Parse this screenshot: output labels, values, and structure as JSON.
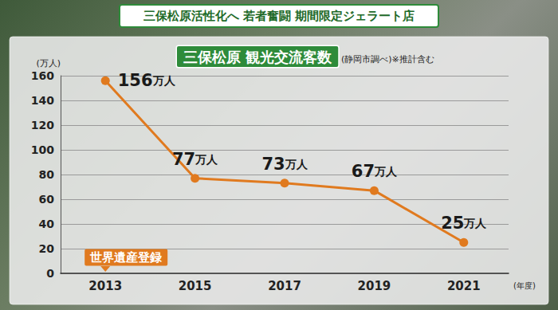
{
  "chart_data": {
    "type": "line",
    "header": "三保松原活性化へ 若者奮闘 期間限定ジェラート店",
    "title": "三保松原 観光交流客数",
    "subtitle": "(静岡市調べ)※推計含む",
    "x_label": "(年度)",
    "y_label": "(万人)",
    "categories": [
      "2013",
      "2015",
      "2017",
      "2019",
      "2021"
    ],
    "values": [
      156,
      77,
      73,
      67,
      25
    ],
    "value_labels": [
      "156万人",
      "77万人",
      "73万人",
      "67万人",
      "25万人"
    ],
    "color": "#e07a1f",
    "marker": "circle",
    "ylim": [
      0,
      160
    ],
    "yticks": [
      0,
      20,
      40,
      60,
      80,
      100,
      120,
      140,
      160
    ],
    "grid": true,
    "data_labels": true,
    "annotations": [
      {
        "text": "世界遺産登録",
        "x": "2013"
      }
    ]
  }
}
